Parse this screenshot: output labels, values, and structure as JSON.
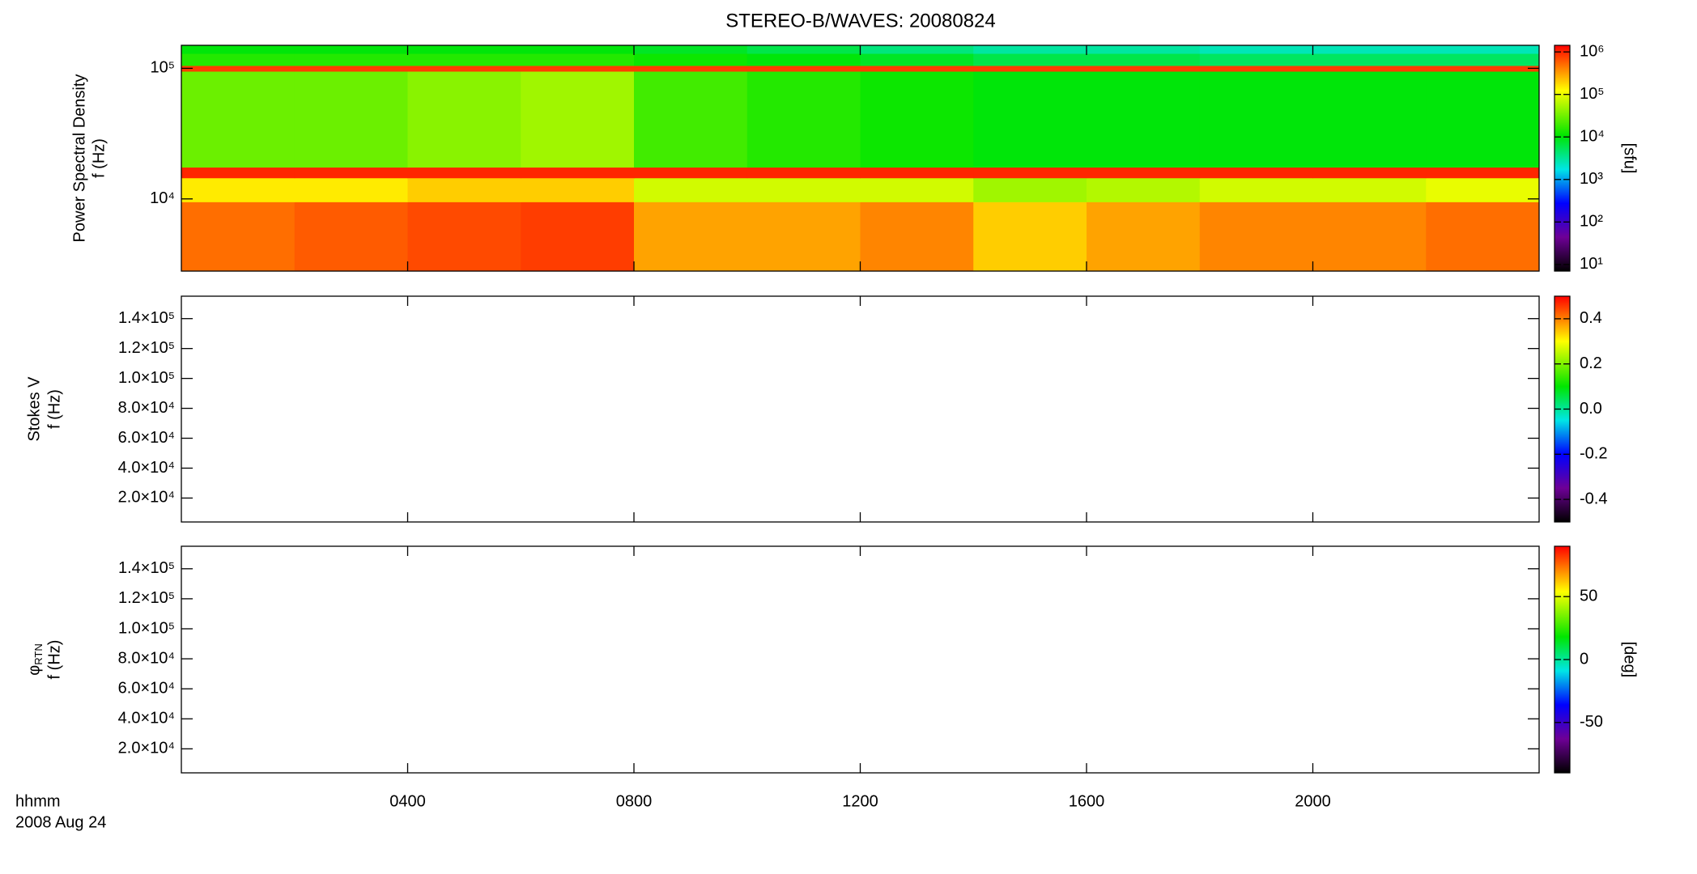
{
  "chart_data": {
    "type": "spectrogram",
    "title": "STEREO-B/WAVES: 20080824",
    "xlim": [
      0,
      24
    ],
    "xticks": [
      {
        "value": 4,
        "label": "0400"
      },
      {
        "value": 8,
        "label": "0800"
      },
      {
        "value": 12,
        "label": "1200"
      },
      {
        "value": 16,
        "label": "1600"
      },
      {
        "value": 20,
        "label": "2000"
      }
    ],
    "xlabel": [
      "hhmm",
      "2008 Aug 24"
    ],
    "panels": [
      {
        "type": "heatmap",
        "ylabel": [
          "Power Spectral Density",
          "f (Hz)"
        ],
        "log": true,
        "ylim": [
          2800,
          150000
        ],
        "yticks": [
          {
            "value": 10000,
            "label": "10⁴"
          },
          {
            "value": 100000,
            "label": "10⁵"
          }
        ],
        "x_edges": [
          0,
          2,
          4,
          6,
          8,
          10,
          12,
          14,
          16,
          18,
          20,
          22,
          24
        ],
        "y_edges": [
          2800,
          9500,
          14500,
          17500,
          95000,
          105000,
          130000,
          150000
        ],
        "values": [
          [
            500000,
            600000,
            700000,
            800000,
            300000,
            300000,
            400000,
            200000,
            300000,
            400000,
            400000,
            500000
          ],
          [
            150000,
            150000,
            200000,
            200000,
            80000,
            80000,
            80000,
            50000,
            60000,
            80000,
            80000,
            100000
          ],
          [
            1000000,
            1000000,
            1000000,
            1000000,
            1000000,
            1000000,
            1000000,
            1000000,
            1000000,
            1000000,
            1000000,
            1000000
          ],
          [
            30000,
            30000,
            40000,
            50000,
            20000,
            15000,
            12000,
            10000,
            10000,
            10000,
            10000,
            10000
          ],
          [
            800000,
            800000,
            800000,
            800000,
            800000,
            800000,
            800000,
            800000,
            800000,
            800000,
            800000,
            800000
          ],
          [
            15000,
            15000,
            15000,
            15000,
            12000,
            10000,
            8000,
            6000,
            6000,
            5000,
            5000,
            5000
          ],
          [
            10000,
            10000,
            10000,
            10000,
            8000,
            6000,
            4000,
            3000,
            3000,
            2500,
            2500,
            2500
          ]
        ],
        "colorbar_log": true,
        "colorbar_lim": [
          7,
          1430000
        ],
        "colorbar_ticks": [
          {
            "value": 10,
            "label": "10¹"
          },
          {
            "value": 100,
            "label": "10²"
          },
          {
            "value": 1000,
            "label": "10³"
          },
          {
            "value": 10000,
            "label": "10⁴"
          },
          {
            "value": 100000,
            "label": "10⁵"
          },
          {
            "value": 1000000,
            "label": "10⁶"
          }
        ],
        "colorbar_label": "[sfu]"
      },
      {
        "type": "heatmap",
        "ylabel": [
          "Stokes V",
          "f (Hz)"
        ],
        "ylim": [
          4000,
          155000
        ],
        "yticks": [
          {
            "value": 20000,
            "label": "2.0×10⁴"
          },
          {
            "value": 40000,
            "label": "4.0×10⁴"
          },
          {
            "value": 60000,
            "label": "6.0×10⁴"
          },
          {
            "value": 80000,
            "label": "8.0×10⁴"
          },
          {
            "value": 100000,
            "label": "1.0×10⁵"
          },
          {
            "value": 120000,
            "label": "1.2×10⁵"
          },
          {
            "value": 140000,
            "label": "1.4×10⁵"
          }
        ],
        "colorbar_lim": [
          -0.5,
          0.5
        ],
        "colorbar_ticks": [
          -0.4,
          -0.2,
          {
            "value": 0,
            "label": "0.0"
          },
          0.2,
          0.4
        ]
      },
      {
        "type": "heatmap",
        "ylabel": [
          "φ",
          "f (Hz)"
        ],
        "ylabel_sub": "RTN",
        "ylim": [
          4000,
          155000
        ],
        "yticks": [
          {
            "value": 20000,
            "label": "2.0×10⁴"
          },
          {
            "value": 40000,
            "label": "4.0×10⁴"
          },
          {
            "value": 60000,
            "label": "6.0×10⁴"
          },
          {
            "value": 80000,
            "label": "8.0×10⁴"
          },
          {
            "value": 100000,
            "label": "1.0×10⁵"
          },
          {
            "value": 120000,
            "label": "1.2×10⁵"
          },
          {
            "value": 140000,
            "label": "1.4×10⁵"
          }
        ],
        "colorbar_lim": [
          -90,
          90
        ],
        "colorbar_ticks": [
          -50,
          0,
          50
        ],
        "colorbar_label": "[deg]"
      }
    ]
  }
}
